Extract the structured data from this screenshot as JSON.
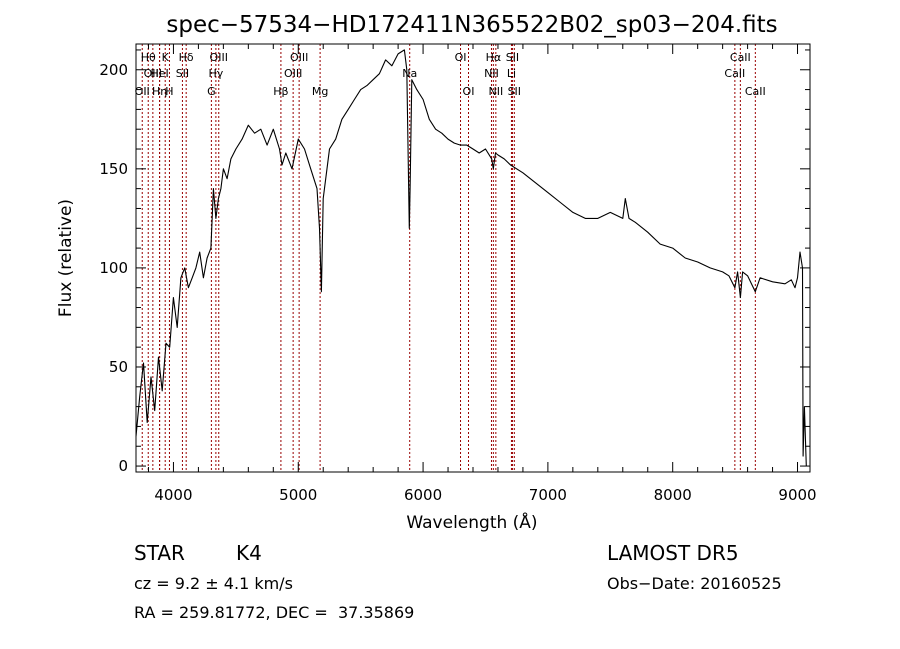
{
  "chart_data": {
    "type": "line",
    "title": "spec−57534−HD172411N365522B02_sp03−204.fits",
    "xlabel": "Wavelength (Å)",
    "ylabel": "Flux (relative)",
    "xlim": [
      3700,
      9100
    ],
    "ylim": [
      -3,
      213
    ],
    "xticks": [
      4000,
      5000,
      6000,
      7000,
      8000,
      9000
    ],
    "yticks": [
      0,
      50,
      100,
      150,
      200
    ],
    "grid": false,
    "legend": "none",
    "line_color": "#000000",
    "marker_color": "#990000",
    "series": [
      {
        "x": [
          3700,
          3730,
          3760,
          3790,
          3820,
          3850,
          3880,
          3910,
          3940,
          3970,
          4000,
          4030,
          4060,
          4090,
          4120,
          4150,
          4180,
          4210,
          4240,
          4270,
          4300,
          4320,
          4340,
          4360,
          4380,
          4400,
          4430,
          4460,
          4500,
          4550,
          4600,
          4650,
          4700,
          4750,
          4800,
          4850,
          4870,
          4900,
          4950,
          5000,
          5050,
          5100,
          5150,
          5170,
          5185,
          5200,
          5250,
          5300,
          5350,
          5400,
          5450,
          5500,
          5550,
          5600,
          5650,
          5700,
          5750,
          5800,
          5850,
          5870,
          5890,
          5896,
          5910,
          5950,
          6000,
          6050,
          6100,
          6150,
          6200,
          6250,
          6300,
          6350,
          6400,
          6450,
          6500,
          6550,
          6563,
          6580,
          6600,
          6650,
          6700,
          6800,
          6900,
          7000,
          7100,
          7200,
          7300,
          7400,
          7500,
          7600,
          7620,
          7650,
          7700,
          7800,
          7900,
          8000,
          8100,
          8200,
          8300,
          8400,
          8450,
          8498,
          8520,
          8542,
          8560,
          8600,
          8662,
          8700,
          8800,
          8900,
          8950,
          8980,
          9000,
          9020,
          9040,
          9045,
          9055,
          9070
        ],
        "y": [
          15,
          35,
          52,
          22,
          45,
          28,
          55,
          38,
          62,
          60,
          85,
          70,
          95,
          100,
          90,
          95,
          100,
          108,
          95,
          105,
          110,
          140,
          125,
          135,
          140,
          150,
          145,
          155,
          160,
          165,
          172,
          168,
          170,
          162,
          170,
          160,
          152,
          158,
          150,
          165,
          160,
          150,
          140,
          120,
          88,
          135,
          160,
          165,
          175,
          180,
          185,
          190,
          192,
          195,
          198,
          205,
          202,
          208,
          210,
          200,
          120,
          140,
          195,
          190,
          185,
          175,
          170,
          168,
          165,
          163,
          162,
          162,
          160,
          158,
          160,
          155,
          150,
          158,
          157,
          155,
          152,
          148,
          143,
          138,
          133,
          128,
          125,
          125,
          128,
          125,
          135,
          125,
          123,
          118,
          112,
          110,
          105,
          103,
          100,
          98,
          96,
          90,
          98,
          85,
          98,
          96,
          88,
          95,
          93,
          92,
          94,
          90,
          95,
          108,
          100,
          5,
          30,
          0
        ]
      }
    ],
    "lines": [
      {
        "x": 3750,
        "label": "OII",
        "row": 3
      },
      {
        "x": 3798,
        "label": "Hθ",
        "row": 1
      },
      {
        "x": 3835,
        "label": "OIII",
        "row": 2
      },
      {
        "x": 3889,
        "label": "HeI",
        "row": 2
      },
      {
        "x": 3889,
        "label": "Hη",
        "row": 3
      },
      {
        "x": 3934,
        "label": "K",
        "row": 1
      },
      {
        "x": 3968,
        "label": "H",
        "row": 3
      },
      {
        "x": 4072,
        "label": "SII",
        "row": 2
      },
      {
        "x": 4102,
        "label": "Hδ",
        "row": 1
      },
      {
        "x": 4304,
        "label": "G",
        "row": 3
      },
      {
        "x": 4340,
        "label": "Hγ",
        "row": 2
      },
      {
        "x": 4363,
        "label": "OIII",
        "row": 1
      },
      {
        "x": 4861,
        "label": "Hβ",
        "row": 3
      },
      {
        "x": 4959,
        "label": "OIII",
        "row": 2
      },
      {
        "x": 5007,
        "label": "OIII",
        "row": 1
      },
      {
        "x": 5175,
        "label": "Mg",
        "row": 3
      },
      {
        "x": 5893,
        "label": "Na",
        "row": 2
      },
      {
        "x": 6300,
        "label": "OI",
        "row": 1
      },
      {
        "x": 6364,
        "label": "OI",
        "row": 3
      },
      {
        "x": 6548,
        "label": "NII",
        "row": 2
      },
      {
        "x": 6563,
        "label": "Hα",
        "row": 1
      },
      {
        "x": 6583,
        "label": "NII",
        "row": 3
      },
      {
        "x": 6708,
        "label": "Li",
        "row": 2
      },
      {
        "x": 6716,
        "label": "SII",
        "row": 1
      },
      {
        "x": 6731,
        "label": "SII",
        "row": 3
      },
      {
        "x": 8498,
        "label": "CaII",
        "row": 2
      },
      {
        "x": 8542,
        "label": "CaII",
        "row": 1
      },
      {
        "x": 8662,
        "label": "CaII",
        "row": 3
      }
    ]
  },
  "info": {
    "object_class": "STAR",
    "subclass": "K4",
    "survey": "LAMOST DR5",
    "cz": "cz = 9.2 ± 4.1 km/s",
    "obs_date": "Obs−Date: 20160525",
    "coords": "RA = 259.81772, DEC =  37.35869"
  }
}
